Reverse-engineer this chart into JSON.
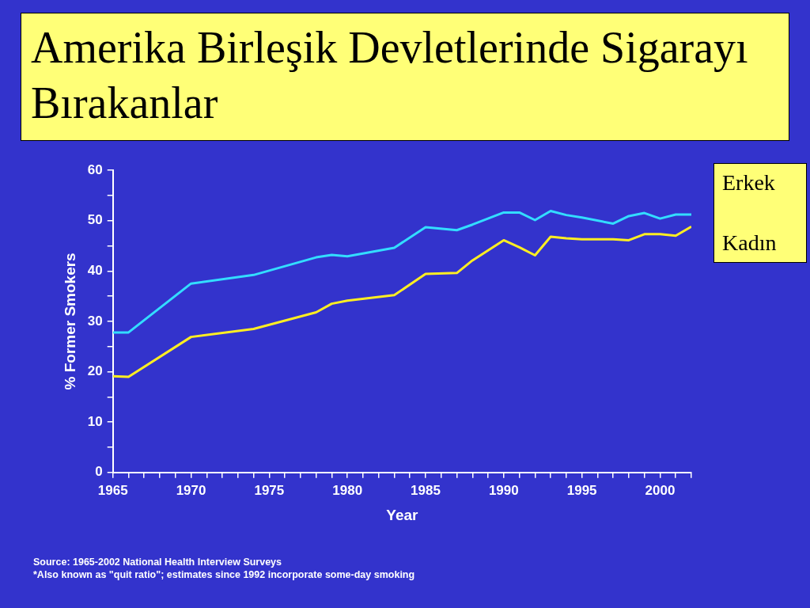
{
  "chart_data": {
    "type": "line",
    "title": "Amerika Birleşik Devletlerinde Sigarayı Bırakanlar",
    "xlabel": "Year",
    "ylabel": "% Former Smokers",
    "legend": "top right",
    "grid": false,
    "marker": "none",
    "line_style": "solid",
    "xlim": [
      1965,
      2002
    ],
    "xticks": [
      1965,
      {
        "value": 1966,
        "label": null
      },
      {
        "value": 1967,
        "label": null
      },
      {
        "value": 1968,
        "label": null
      },
      {
        "value": 1969,
        "label": null
      },
      1970,
      {
        "value": 1971,
        "label": null
      },
      {
        "value": 1972,
        "label": null
      },
      {
        "value": 1973,
        "label": null
      },
      {
        "value": 1974,
        "label": null
      },
      1975,
      {
        "value": 1976,
        "label": null
      },
      {
        "value": 1977,
        "label": null
      },
      {
        "value": 1978,
        "label": null
      },
      {
        "value": 1979,
        "label": null
      },
      1980,
      {
        "value": 1981,
        "label": null
      },
      {
        "value": 1982,
        "label": null
      },
      {
        "value": 1983,
        "label": null
      },
      {
        "value": 1984,
        "label": null
      },
      1985,
      {
        "value": 1986,
        "label": null
      },
      {
        "value": 1987,
        "label": null
      },
      {
        "value": 1988,
        "label": null
      },
      {
        "value": 1989,
        "label": null
      },
      1990,
      {
        "value": 1991,
        "label": null
      },
      {
        "value": 1992,
        "label": null
      },
      {
        "value": 1993,
        "label": null
      },
      {
        "value": 1994,
        "label": null
      },
      1995,
      {
        "value": 1996,
        "label": null
      },
      {
        "value": 1997,
        "label": null
      },
      {
        "value": 1998,
        "label": null
      },
      {
        "value": 1999,
        "label": null
      },
      2000,
      {
        "value": 2001,
        "label": null
      },
      {
        "value": 2002,
        "label": null
      }
    ],
    "ylim": [
      0,
      60
    ],
    "yticks": [
      0,
      {
        "value": 5,
        "label": null
      },
      10,
      {
        "value": 15,
        "label": null
      },
      20,
      {
        "value": 25,
        "label": null
      },
      30,
      {
        "value": 35,
        "label": null
      },
      40,
      {
        "value": 45,
        "label": null
      },
      50,
      {
        "value": 55,
        "label": null
      },
      60
    ],
    "x": [
      1965,
      1966,
      1970,
      1974,
      1978,
      1979,
      1980,
      1983,
      1985,
      1987,
      1988,
      1990,
      1991,
      1992,
      1993,
      1994,
      1995,
      1997,
      1998,
      1999,
      2000,
      2001,
      2002
    ],
    "series": [
      {
        "name": "Erkek",
        "color": "#33ddff",
        "values": [
          27.8,
          27.8,
          37.5,
          39.2,
          42.7,
          43.2,
          42.9,
          44.6,
          48.7,
          48.1,
          49.2,
          51.6,
          51.6,
          50.1,
          51.9,
          51.1,
          50.6,
          49.4,
          50.9,
          51.5,
          50.4,
          51.2,
          51.2
        ]
      },
      {
        "name": "Kadın",
        "color": "#ffee22",
        "values": [
          19.1,
          19.0,
          26.9,
          28.5,
          31.8,
          33.5,
          34.1,
          35.2,
          39.4,
          39.6,
          42.1,
          46.1,
          44.7,
          43.1,
          46.8,
          46.5,
          46.3,
          46.3,
          46.1,
          47.3,
          47.3,
          47.0,
          48.8
        ]
      }
    ],
    "annotations": [
      "Source: 1965-2002 National Health Interview Surveys",
      "*Also known as \"quit ratio\"; estimates since 1992 incorporate some-day smoking"
    ]
  }
}
